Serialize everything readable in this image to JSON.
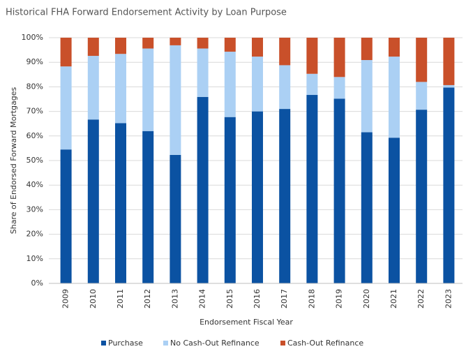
{
  "chart_data": {
    "type": "stacked_bar",
    "title": "Historical FHA Forward  Endorsement Activity by Loan Purpose",
    "x_label": "Endorsement Fiscal Year",
    "y_label": "Share of Endorsed Forward Mortgages",
    "categories": [
      "2009",
      "2010",
      "2011",
      "2012",
      "2013",
      "2014",
      "2015",
      "2016",
      "2017",
      "2018",
      "2019",
      "2020",
      "2021",
      "2022",
      "2023"
    ],
    "series": [
      {
        "name": "Purchase",
        "color": "#0b52a2",
        "values": [
          54.5,
          66.7,
          65.2,
          62.0,
          52.3,
          75.9,
          67.7,
          70.0,
          71.0,
          76.7,
          75.2,
          61.5,
          59.3,
          70.7,
          79.7
        ]
      },
      {
        "name": "No Cash-Out Refinance",
        "color": "#abd0f4",
        "values": [
          33.8,
          25.9,
          28.2,
          33.6,
          44.6,
          19.7,
          26.6,
          22.3,
          17.8,
          8.6,
          8.8,
          29.4,
          33.0,
          11.3,
          1.0
        ]
      },
      {
        "name": "Cash-Out Refinance",
        "color": "#c9502a",
        "values": [
          11.7,
          7.4,
          6.6,
          4.4,
          3.1,
          4.4,
          5.7,
          7.7,
          11.2,
          14.7,
          16.0,
          9.1,
          7.7,
          18.0,
          19.3
        ]
      }
    ],
    "ylim": [
      0,
      100
    ],
    "yticks": [
      {
        "value": 0,
        "label": "0%"
      },
      {
        "value": 10,
        "label": "10%"
      },
      {
        "value": 20,
        "label": "20%"
      },
      {
        "value": 30,
        "label": "30%"
      },
      {
        "value": 40,
        "label": "40%"
      },
      {
        "value": 50,
        "label": "50%"
      },
      {
        "value": 60,
        "label": "60%"
      },
      {
        "value": 70,
        "label": "70%"
      },
      {
        "value": 80,
        "label": "80%"
      },
      {
        "value": 90,
        "label": "90%"
      },
      {
        "value": 100,
        "label": "100%"
      }
    ],
    "grid": true,
    "legend": "bottom"
  }
}
